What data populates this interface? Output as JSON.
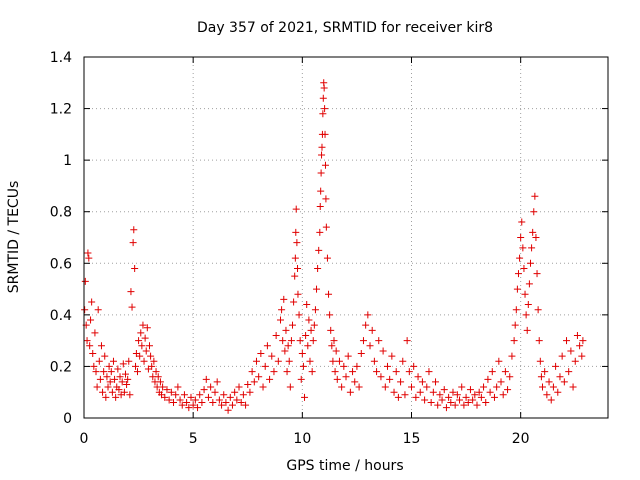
{
  "chart_data": {
    "type": "scatter",
    "title": "Day 357 of 2021, SRMTID for receiver kir8",
    "xlabel": "GPS time / hours",
    "ylabel": "SRMTID / TECUs",
    "xlim": [
      0,
      24
    ],
    "ylim": [
      0,
      1.4
    ],
    "grid": true,
    "marker": "plus",
    "color": "#e00000",
    "xticks": [
      0,
      5,
      10,
      15,
      20
    ],
    "xtick_labels": [
      "0",
      "5",
      "10",
      "15",
      "20"
    ],
    "yticks": [
      0,
      0.2,
      0.4,
      0.6,
      0.8,
      1.0,
      1.2,
      1.4
    ],
    "ytick_labels": [
      "0",
      "0.2",
      "0.4",
      "0.6",
      "0.8",
      "1",
      "1.2",
      "1.4"
    ],
    "series": [
      {
        "name": "SRMTID",
        "points": [
          [
            0.03,
            0.42
          ],
          [
            0.06,
            0.53
          ],
          [
            0.1,
            0.36
          ],
          [
            0.14,
            0.3
          ],
          [
            0.18,
            0.64
          ],
          [
            0.22,
            0.62
          ],
          [
            0.26,
            0.28
          ],
          [
            0.3,
            0.38
          ],
          [
            0.35,
            0.45
          ],
          [
            0.4,
            0.25
          ],
          [
            0.45,
            0.2
          ],
          [
            0.5,
            0.33
          ],
          [
            0.55,
            0.18
          ],
          [
            0.6,
            0.12
          ],
          [
            0.65,
            0.42
          ],
          [
            0.7,
            0.22
          ],
          [
            0.75,
            0.15
          ],
          [
            0.8,
            0.28
          ],
          [
            0.85,
            0.1
          ],
          [
            0.9,
            0.18
          ],
          [
            0.95,
            0.24
          ],
          [
            1.0,
            0.08
          ],
          [
            1.05,
            0.16
          ],
          [
            1.1,
            0.12
          ],
          [
            1.15,
            0.2
          ],
          [
            1.2,
            0.14
          ],
          [
            1.25,
            0.18
          ],
          [
            1.3,
            0.1
          ],
          [
            1.35,
            0.22
          ],
          [
            1.4,
            0.15
          ],
          [
            1.45,
            0.08
          ],
          [
            1.5,
            0.12
          ],
          [
            1.55,
            0.19
          ],
          [
            1.6,
            0.11
          ],
          [
            1.65,
            0.16
          ],
          [
            1.7,
            0.09
          ],
          [
            1.75,
            0.14
          ],
          [
            1.8,
            0.21
          ],
          [
            1.85,
            0.1
          ],
          [
            1.9,
            0.17
          ],
          [
            1.95,
            0.13
          ],
          [
            2.0,
            0.15
          ],
          [
            2.05,
            0.22
          ],
          [
            2.1,
            0.09
          ],
          [
            2.15,
            0.49
          ],
          [
            2.2,
            0.43
          ],
          [
            2.25,
            0.68
          ],
          [
            2.28,
            0.73
          ],
          [
            2.32,
            0.58
          ],
          [
            2.36,
            0.2
          ],
          [
            2.4,
            0.25
          ],
          [
            2.45,
            0.18
          ],
          [
            2.5,
            0.3
          ],
          [
            2.55,
            0.24
          ],
          [
            2.6,
            0.33
          ],
          [
            2.65,
            0.28
          ],
          [
            2.7,
            0.36
          ],
          [
            2.75,
            0.22
          ],
          [
            2.8,
            0.31
          ],
          [
            2.85,
            0.26
          ],
          [
            2.9,
            0.35
          ],
          [
            2.95,
            0.19
          ],
          [
            3.0,
            0.28
          ],
          [
            3.05,
            0.24
          ],
          [
            3.1,
            0.2
          ],
          [
            3.15,
            0.16
          ],
          [
            3.2,
            0.22
          ],
          [
            3.25,
            0.14
          ],
          [
            3.3,
            0.18
          ],
          [
            3.35,
            0.12
          ],
          [
            3.4,
            0.16
          ],
          [
            3.45,
            0.1
          ],
          [
            3.5,
            0.14
          ],
          [
            3.55,
            0.09
          ],
          [
            3.6,
            0.12
          ],
          [
            3.7,
            0.08
          ],
          [
            3.8,
            0.11
          ],
          [
            3.9,
            0.07
          ],
          [
            4.0,
            0.1
          ],
          [
            4.1,
            0.06
          ],
          [
            4.2,
            0.09
          ],
          [
            4.3,
            0.12
          ],
          [
            4.4,
            0.07
          ],
          [
            4.5,
            0.05
          ],
          [
            4.6,
            0.09
          ],
          [
            4.7,
            0.06
          ],
          [
            4.8,
            0.04
          ],
          [
            4.9,
            0.08
          ],
          [
            5.0,
            0.05
          ],
          [
            5.1,
            0.07
          ],
          [
            5.2,
            0.04
          ],
          [
            5.3,
            0.09
          ],
          [
            5.4,
            0.06
          ],
          [
            5.5,
            0.11
          ],
          [
            5.6,
            0.15
          ],
          [
            5.7,
            0.08
          ],
          [
            5.8,
            0.12
          ],
          [
            5.9,
            0.06
          ],
          [
            6.0,
            0.1
          ],
          [
            6.1,
            0.14
          ],
          [
            6.2,
            0.07
          ],
          [
            6.3,
            0.05
          ],
          [
            6.4,
            0.09
          ],
          [
            6.5,
            0.06
          ],
          [
            6.6,
            0.03
          ],
          [
            6.7,
            0.08
          ],
          [
            6.8,
            0.05
          ],
          [
            6.9,
            0.1
          ],
          [
            7.0,
            0.07
          ],
          [
            7.1,
            0.12
          ],
          [
            7.2,
            0.06
          ],
          [
            7.3,
            0.09
          ],
          [
            7.4,
            0.05
          ],
          [
            7.5,
            0.13
          ],
          [
            7.6,
            0.1
          ],
          [
            7.7,
            0.18
          ],
          [
            7.8,
            0.14
          ],
          [
            7.9,
            0.22
          ],
          [
            8.0,
            0.16
          ],
          [
            8.1,
            0.25
          ],
          [
            8.2,
            0.12
          ],
          [
            8.3,
            0.2
          ],
          [
            8.4,
            0.28
          ],
          [
            8.5,
            0.15
          ],
          [
            8.6,
            0.24
          ],
          [
            8.7,
            0.18
          ],
          [
            8.8,
            0.32
          ],
          [
            8.9,
            0.22
          ],
          [
            9.0,
            0.38
          ],
          [
            9.05,
            0.42
          ],
          [
            9.1,
            0.3
          ],
          [
            9.15,
            0.46
          ],
          [
            9.2,
            0.26
          ],
          [
            9.25,
            0.34
          ],
          [
            9.3,
            0.18
          ],
          [
            9.35,
            0.28
          ],
          [
            9.4,
            0.22
          ],
          [
            9.45,
            0.12
          ],
          [
            9.5,
            0.3
          ],
          [
            9.55,
            0.36
          ],
          [
            9.6,
            0.45
          ],
          [
            9.65,
            0.55
          ],
          [
            9.68,
            0.62
          ],
          [
            9.7,
            0.72
          ],
          [
            9.72,
            0.81
          ],
          [
            9.75,
            0.68
          ],
          [
            9.78,
            0.58
          ],
          [
            9.8,
            0.48
          ],
          [
            9.85,
            0.4
          ],
          [
            9.9,
            0.3
          ],
          [
            9.95,
            0.15
          ],
          [
            10.0,
            0.25
          ],
          [
            10.05,
            0.2
          ],
          [
            10.1,
            0.08
          ],
          [
            10.15,
            0.32
          ],
          [
            10.2,
            0.44
          ],
          [
            10.25,
            0.28
          ],
          [
            10.3,
            0.38
          ],
          [
            10.35,
            0.22
          ],
          [
            10.4,
            0.34
          ],
          [
            10.45,
            0.18
          ],
          [
            10.5,
            0.3
          ],
          [
            10.55,
            0.36
          ],
          [
            10.6,
            0.42
          ],
          [
            10.65,
            0.5
          ],
          [
            10.7,
            0.58
          ],
          [
            10.75,
            0.65
          ],
          [
            10.8,
            0.72
          ],
          [
            10.82,
            0.82
          ],
          [
            10.84,
            0.88
          ],
          [
            10.86,
            0.95
          ],
          [
            10.88,
            1.02
          ],
          [
            10.9,
            1.05
          ],
          [
            10.92,
            1.1
          ],
          [
            10.94,
            1.18
          ],
          [
            10.96,
            1.24
          ],
          [
            10.98,
            1.3
          ],
          [
            11.0,
            1.28
          ],
          [
            11.02,
            1.2
          ],
          [
            11.04,
            1.1
          ],
          [
            11.06,
            0.98
          ],
          [
            11.08,
            0.85
          ],
          [
            11.1,
            0.74
          ],
          [
            11.15,
            0.62
          ],
          [
            11.2,
            0.48
          ],
          [
            11.25,
            0.4
          ],
          [
            11.3,
            0.34
          ],
          [
            11.35,
            0.28
          ],
          [
            11.4,
            0.22
          ],
          [
            11.45,
            0.3
          ],
          [
            11.5,
            0.18
          ],
          [
            11.55,
            0.26
          ],
          [
            11.6,
            0.15
          ],
          [
            11.7,
            0.22
          ],
          [
            11.8,
            0.12
          ],
          [
            11.9,
            0.2
          ],
          [
            12.0,
            0.16
          ],
          [
            12.1,
            0.24
          ],
          [
            12.2,
            0.1
          ],
          [
            12.3,
            0.18
          ],
          [
            12.4,
            0.14
          ],
          [
            12.5,
            0.2
          ],
          [
            12.6,
            0.12
          ],
          [
            12.7,
            0.25
          ],
          [
            12.8,
            0.3
          ],
          [
            12.9,
            0.36
          ],
          [
            13.0,
            0.4
          ],
          [
            13.1,
            0.28
          ],
          [
            13.2,
            0.34
          ],
          [
            13.3,
            0.22
          ],
          [
            13.4,
            0.18
          ],
          [
            13.5,
            0.3
          ],
          [
            13.6,
            0.16
          ],
          [
            13.7,
            0.26
          ],
          [
            13.8,
            0.12
          ],
          [
            13.9,
            0.2
          ],
          [
            14.0,
            0.15
          ],
          [
            14.1,
            0.24
          ],
          [
            14.2,
            0.1
          ],
          [
            14.3,
            0.18
          ],
          [
            14.4,
            0.08
          ],
          [
            14.5,
            0.14
          ],
          [
            14.6,
            0.22
          ],
          [
            14.7,
            0.09
          ],
          [
            14.8,
            0.3
          ],
          [
            14.9,
            0.18
          ],
          [
            15.0,
            0.12
          ],
          [
            15.1,
            0.2
          ],
          [
            15.2,
            0.08
          ],
          [
            15.3,
            0.16
          ],
          [
            15.4,
            0.1
          ],
          [
            15.5,
            0.14
          ],
          [
            15.6,
            0.07
          ],
          [
            15.7,
            0.12
          ],
          [
            15.8,
            0.18
          ],
          [
            15.9,
            0.06
          ],
          [
            16.0,
            0.1
          ],
          [
            16.1,
            0.14
          ],
          [
            16.2,
            0.05
          ],
          [
            16.3,
            0.09
          ],
          [
            16.4,
            0.07
          ],
          [
            16.5,
            0.11
          ],
          [
            16.6,
            0.04
          ],
          [
            16.7,
            0.08
          ],
          [
            16.8,
            0.06
          ],
          [
            16.9,
            0.1
          ],
          [
            17.0,
            0.05
          ],
          [
            17.1,
            0.09
          ],
          [
            17.2,
            0.07
          ],
          [
            17.3,
            0.12
          ],
          [
            17.4,
            0.05
          ],
          [
            17.5,
            0.08
          ],
          [
            17.6,
            0.06
          ],
          [
            17.7,
            0.11
          ],
          [
            17.8,
            0.07
          ],
          [
            17.9,
            0.09
          ],
          [
            18.0,
            0.05
          ],
          [
            18.1,
            0.1
          ],
          [
            18.2,
            0.08
          ],
          [
            18.3,
            0.12
          ],
          [
            18.4,
            0.06
          ],
          [
            18.5,
            0.15
          ],
          [
            18.6,
            0.1
          ],
          [
            18.7,
            0.18
          ],
          [
            18.8,
            0.08
          ],
          [
            18.9,
            0.12
          ],
          [
            19.0,
            0.22
          ],
          [
            19.1,
            0.14
          ],
          [
            19.2,
            0.09
          ],
          [
            19.3,
            0.18
          ],
          [
            19.4,
            0.11
          ],
          [
            19.5,
            0.16
          ],
          [
            19.6,
            0.24
          ],
          [
            19.7,
            0.3
          ],
          [
            19.75,
            0.36
          ],
          [
            19.8,
            0.42
          ],
          [
            19.85,
            0.5
          ],
          [
            19.9,
            0.56
          ],
          [
            19.95,
            0.62
          ],
          [
            20.0,
            0.7
          ],
          [
            20.05,
            0.76
          ],
          [
            20.1,
            0.66
          ],
          [
            20.15,
            0.58
          ],
          [
            20.2,
            0.48
          ],
          [
            20.25,
            0.4
          ],
          [
            20.3,
            0.34
          ],
          [
            20.35,
            0.44
          ],
          [
            20.4,
            0.52
          ],
          [
            20.45,
            0.6
          ],
          [
            20.5,
            0.66
          ],
          [
            20.55,
            0.72
          ],
          [
            20.6,
            0.8
          ],
          [
            20.65,
            0.86
          ],
          [
            20.7,
            0.7
          ],
          [
            20.75,
            0.56
          ],
          [
            20.8,
            0.42
          ],
          [
            20.85,
            0.3
          ],
          [
            20.9,
            0.22
          ],
          [
            20.95,
            0.16
          ],
          [
            21.0,
            0.12
          ],
          [
            21.1,
            0.18
          ],
          [
            21.2,
            0.09
          ],
          [
            21.3,
            0.14
          ],
          [
            21.4,
            0.07
          ],
          [
            21.5,
            0.12
          ],
          [
            21.6,
            0.2
          ],
          [
            21.7,
            0.1
          ],
          [
            21.8,
            0.16
          ],
          [
            21.9,
            0.24
          ],
          [
            22.0,
            0.14
          ],
          [
            22.1,
            0.3
          ],
          [
            22.2,
            0.18
          ],
          [
            22.3,
            0.26
          ],
          [
            22.4,
            0.12
          ],
          [
            22.5,
            0.22
          ],
          [
            22.6,
            0.32
          ],
          [
            22.7,
            0.28
          ],
          [
            22.8,
            0.24
          ],
          [
            22.85,
            0.3
          ]
        ]
      }
    ]
  }
}
